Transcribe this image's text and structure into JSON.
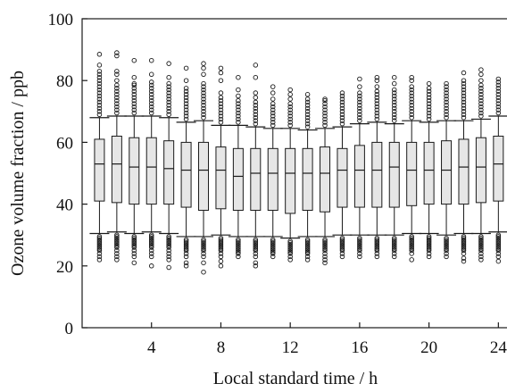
{
  "chart_data": {
    "type": "box",
    "xlabel": "Local standard time / h",
    "ylabel": "Ozone volume fraction / ppb",
    "ylim": [
      0,
      100
    ],
    "xlim": [
      0,
      24.6
    ],
    "x_ticks": [
      4,
      8,
      12,
      16,
      20,
      24
    ],
    "y_ticks": [
      0,
      20,
      40,
      60,
      80,
      100
    ],
    "grid": false,
    "legend": "none",
    "colors": {
      "box_fill": "#e6e6e6",
      "stroke": "#1a1a1a"
    },
    "boxes": [
      {
        "hour": 1,
        "whisker_low": 30.5,
        "q1": 41,
        "median": 53,
        "q3": 61,
        "whisker_high": 68,
        "outliers_low": [
          29.5,
          29,
          28.5,
          28,
          27.5,
          27,
          26.5,
          26,
          25.5,
          25,
          24,
          23,
          22
        ],
        "outliers_high": [
          69,
          70,
          71,
          72,
          73,
          74,
          75,
          76,
          77,
          78,
          79,
          80,
          81,
          82,
          83,
          85,
          88.5
        ]
      },
      {
        "hour": 2,
        "whisker_low": 31,
        "q1": 40.5,
        "median": 53,
        "q3": 62,
        "whisker_high": 68.5,
        "outliers_low": [
          30,
          29.5,
          29,
          28.5,
          28,
          27.5,
          27,
          26.5,
          26,
          25,
          24,
          23,
          22
        ],
        "outliers_high": [
          69.5,
          70.5,
          71.5,
          72.5,
          73.5,
          74.5,
          75.5,
          76.5,
          77.5,
          78.5,
          80,
          82,
          83,
          88,
          89
        ]
      },
      {
        "hour": 3,
        "whisker_low": 30.5,
        "q1": 40,
        "median": 52,
        "q3": 61.5,
        "whisker_high": 68.5,
        "outliers_low": [
          29.5,
          29,
          28.5,
          28,
          27.5,
          27,
          26.5,
          26,
          25,
          24,
          23,
          21
        ],
        "outliers_high": [
          69.5,
          70.5,
          71.5,
          72.5,
          73.5,
          74.5,
          75.5,
          76.5,
          77.5,
          78.5,
          79,
          81,
          86.5
        ]
      },
      {
        "hour": 4,
        "whisker_low": 31,
        "q1": 40,
        "median": 52,
        "q3": 61.5,
        "whisker_high": 68.5,
        "outliers_low": [
          30,
          29.5,
          29,
          28.5,
          28,
          27.5,
          27,
          26.5,
          26,
          25,
          24,
          23,
          20
        ],
        "outliers_high": [
          69.5,
          70.5,
          71.5,
          72.5,
          73.5,
          74.5,
          75.5,
          76.5,
          77.5,
          78.5,
          79.5,
          82,
          86.5
        ]
      },
      {
        "hour": 5,
        "whisker_low": 30.5,
        "q1": 40,
        "median": 51.5,
        "q3": 60.5,
        "whisker_high": 68,
        "outliers_low": [
          29.5,
          29,
          28.5,
          28,
          27.5,
          27,
          26.5,
          26,
          25,
          24,
          23,
          22,
          19.5
        ],
        "outliers_high": [
          69,
          70,
          71,
          72,
          73,
          74,
          75,
          76,
          77,
          78,
          79,
          81,
          85.5
        ]
      },
      {
        "hour": 6,
        "whisker_low": 29.5,
        "q1": 39,
        "median": 51,
        "q3": 60,
        "whisker_high": 66.5,
        "outliers_low": [
          28.5,
          28,
          27.5,
          27,
          26.5,
          26,
          25.5,
          25,
          24,
          23,
          21,
          20
        ],
        "outliers_high": [
          67.5,
          68.5,
          69.5,
          70.5,
          71.5,
          72.5,
          73.5,
          74.5,
          75.5,
          76.5,
          77.5,
          80,
          84
        ]
      },
      {
        "hour": 7,
        "whisker_low": 29.5,
        "q1": 38,
        "median": 51,
        "q3": 60,
        "whisker_high": 67,
        "outliers_low": [
          28.5,
          28,
          27.5,
          27,
          26.5,
          26,
          25.5,
          25,
          24,
          23,
          21,
          18
        ],
        "outliers_high": [
          68,
          69,
          70,
          71,
          72,
          73,
          74,
          75,
          76,
          77,
          78,
          79,
          82,
          84,
          85.5
        ]
      },
      {
        "hour": 8,
        "whisker_low": 30,
        "q1": 38.5,
        "median": 51,
        "q3": 58.5,
        "whisker_high": 65.5,
        "outliers_low": [
          29,
          28.5,
          28,
          27.5,
          27,
          26.5,
          26,
          25.5,
          25,
          24,
          23,
          21.5,
          20
        ],
        "outliers_high": [
          66.5,
          67.5,
          68.5,
          69.5,
          70.5,
          71.5,
          72.5,
          73.5,
          74.5,
          76,
          80,
          82.5,
          84
        ]
      },
      {
        "hour": 9,
        "whisker_low": 29.5,
        "q1": 38,
        "median": 49,
        "q3": 58,
        "whisker_high": 65.5,
        "outliers_low": [
          28.5,
          28,
          27.5,
          27,
          26.5,
          26,
          25.5,
          25,
          24.5,
          24,
          23
        ],
        "outliers_high": [
          66.5,
          67.5,
          68.5,
          69.5,
          70.5,
          71.5,
          72.5,
          73.5,
          75,
          77,
          81
        ]
      },
      {
        "hour": 10,
        "whisker_low": 29.5,
        "q1": 38,
        "median": 50,
        "q3": 58,
        "whisker_high": 65,
        "outliers_low": [
          28.5,
          28,
          27.5,
          27,
          26.5,
          26,
          25.5,
          25,
          24,
          23,
          21,
          20
        ],
        "outliers_high": [
          66,
          67,
          68,
          69,
          70,
          71,
          72,
          73,
          74.5,
          76,
          81,
          85
        ]
      },
      {
        "hour": 11,
        "whisker_low": 29.5,
        "q1": 38,
        "median": 50,
        "q3": 58,
        "whisker_high": 64.5,
        "outliers_low": [
          28.5,
          28,
          27.5,
          27,
          26.5,
          26,
          25.5,
          25,
          24.5,
          24,
          23
        ],
        "outliers_high": [
          65.5,
          66.5,
          67.5,
          68.5,
          69.5,
          70.5,
          71.5,
          72.5,
          74,
          76,
          78
        ]
      },
      {
        "hour": 12,
        "whisker_low": 29,
        "q1": 37,
        "median": 50,
        "q3": 58,
        "whisker_high": 64.5,
        "outliers_low": [
          28,
          27.5,
          27,
          26.5,
          26,
          25.5,
          25,
          24.5,
          24,
          23,
          22
        ],
        "outliers_high": [
          65.5,
          66.5,
          67.5,
          68.5,
          69.5,
          70.5,
          71.5,
          72.5,
          74,
          75.5,
          77
        ]
      },
      {
        "hour": 13,
        "whisker_low": 29.5,
        "q1": 38,
        "median": 50,
        "q3": 58,
        "whisker_high": 64,
        "outliers_low": [
          28.5,
          28,
          27.5,
          27,
          26.5,
          26,
          25.5,
          25,
          24.5,
          24,
          23,
          22
        ],
        "outliers_high": [
          65,
          66,
          67,
          68,
          69,
          70,
          71,
          72,
          73,
          74,
          75.5
        ]
      },
      {
        "hour": 14,
        "whisker_low": 29.5,
        "q1": 37.5,
        "median": 50,
        "q3": 58.5,
        "whisker_high": 64.5,
        "outliers_low": [
          28.5,
          28,
          27.5,
          27,
          26.5,
          26,
          25.5,
          25,
          24,
          23,
          22,
          21
        ],
        "outliers_high": [
          65.5,
          66.5,
          67.5,
          68.5,
          69.5,
          70.5,
          71.5,
          72.5,
          73.5,
          74
        ]
      },
      {
        "hour": 15,
        "whisker_low": 30,
        "q1": 39,
        "median": 51,
        "q3": 58,
        "whisker_high": 65,
        "outliers_low": [
          29,
          28.5,
          28,
          27.5,
          27,
          26.5,
          26,
          25.5,
          25,
          24,
          23
        ],
        "outliers_high": [
          66,
          67,
          68,
          69,
          70,
          71,
          72,
          73,
          74,
          75,
          76
        ]
      },
      {
        "hour": 16,
        "whisker_low": 30,
        "q1": 39,
        "median": 51,
        "q3": 59,
        "whisker_high": 66,
        "outliers_low": [
          29,
          28.5,
          28,
          27.5,
          27,
          26.5,
          26,
          25.5,
          25,
          24,
          23
        ],
        "outliers_high": [
          67,
          68,
          69,
          70,
          71,
          72,
          73,
          74,
          75,
          76,
          78,
          80.5
        ]
      },
      {
        "hour": 17,
        "whisker_low": 30,
        "q1": 39,
        "median": 51,
        "q3": 60,
        "whisker_high": 66.5,
        "outliers_low": [
          29,
          28.5,
          28,
          27.5,
          27,
          26.5,
          26,
          25.5,
          25,
          24,
          23
        ],
        "outliers_high": [
          67.5,
          68.5,
          69.5,
          70.5,
          71.5,
          72.5,
          73.5,
          74.5,
          75.5,
          76.5,
          78,
          80,
          81
        ]
      },
      {
        "hour": 18,
        "whisker_low": 30,
        "q1": 39,
        "median": 52,
        "q3": 60,
        "whisker_high": 66,
        "outliers_low": [
          29,
          28.5,
          28,
          27.5,
          27,
          26.5,
          26,
          25.5,
          25,
          24,
          23
        ],
        "outliers_high": [
          67,
          68,
          69,
          70,
          71,
          72,
          73,
          74,
          75,
          76,
          77,
          79,
          81
        ]
      },
      {
        "hour": 19,
        "whisker_low": 30.5,
        "q1": 39.5,
        "median": 51,
        "q3": 60,
        "whisker_high": 67,
        "outliers_low": [
          29.5,
          29,
          28.5,
          28,
          27.5,
          27,
          26.5,
          26,
          25.5,
          25,
          24,
          22
        ],
        "outliers_high": [
          68,
          69,
          70,
          71,
          72,
          73,
          74,
          75,
          76,
          77,
          78,
          80,
          81
        ]
      },
      {
        "hour": 20,
        "whisker_low": 30.5,
        "q1": 40,
        "median": 51,
        "q3": 60,
        "whisker_high": 66.5,
        "outliers_low": [
          29.5,
          29,
          28.5,
          28,
          27.5,
          27,
          26.5,
          26,
          25.5,
          25,
          24,
          23
        ],
        "outliers_high": [
          67.5,
          68.5,
          69.5,
          70.5,
          71.5,
          72.5,
          73.5,
          74.5,
          75.5,
          76.5,
          77.5,
          79
        ]
      },
      {
        "hour": 21,
        "whisker_low": 30,
        "q1": 40,
        "median": 51,
        "q3": 60.5,
        "whisker_high": 67,
        "outliers_low": [
          29,
          28.5,
          28,
          27.5,
          27,
          26.5,
          26,
          25.5,
          25,
          24,
          23
        ],
        "outliers_high": [
          68,
          69,
          70,
          71,
          72,
          73,
          74,
          75,
          76,
          77,
          78,
          79
        ]
      },
      {
        "hour": 22,
        "whisker_low": 30.5,
        "q1": 40,
        "median": 52,
        "q3": 61,
        "whisker_high": 67,
        "outliers_low": [
          29.5,
          29,
          28.5,
          28,
          27.5,
          27,
          26.5,
          26,
          25.5,
          25,
          24,
          22.5,
          21.5
        ],
        "outliers_high": [
          68,
          69,
          70,
          71,
          72,
          73,
          74,
          75,
          76,
          77,
          78,
          79,
          80,
          82.5
        ]
      },
      {
        "hour": 23,
        "whisker_low": 30.5,
        "q1": 40.5,
        "median": 52,
        "q3": 61.5,
        "whisker_high": 67.5,
        "outliers_low": [
          29.5,
          29,
          28.5,
          28,
          27.5,
          27,
          26.5,
          26,
          25.5,
          25,
          24,
          23,
          22
        ],
        "outliers_high": [
          68.5,
          69.5,
          70.5,
          71.5,
          72.5,
          73.5,
          74.5,
          75.5,
          76.5,
          77.5,
          78.5,
          80,
          82,
          83.5
        ]
      },
      {
        "hour": 24,
        "whisker_low": 31,
        "q1": 41,
        "median": 53,
        "q3": 62,
        "whisker_high": 68.5,
        "outliers_low": [
          30,
          29.5,
          29,
          28.5,
          28,
          27.5,
          27,
          26.5,
          26,
          25.5,
          25,
          24,
          23,
          21.5
        ],
        "outliers_high": [
          69.5,
          70.5,
          71.5,
          72.5,
          73.5,
          74.5,
          75.5,
          76.5,
          77.5,
          78.5,
          79.5,
          80.5
        ]
      }
    ]
  }
}
